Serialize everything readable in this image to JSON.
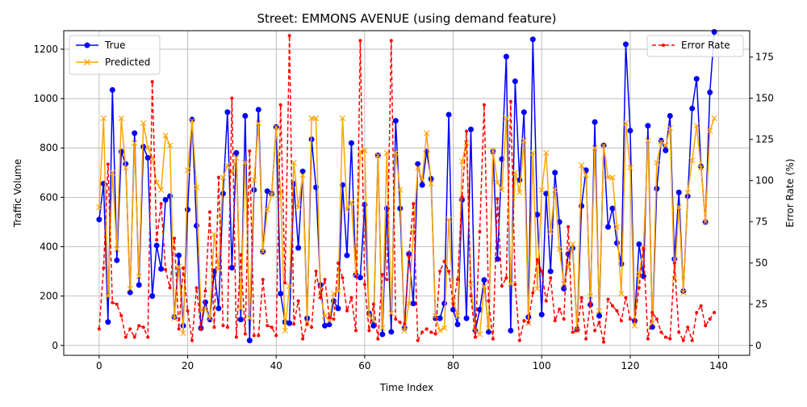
{
  "chart_data": {
    "type": "line",
    "title": "Street: EMMONS AVENUE (using demand feature)",
    "xlabel": "Time Index",
    "ylabel": "Traffic Volume",
    "y2label": "Error Rate (%)",
    "xlim": [
      -8,
      147
    ],
    "ylim": [
      -40,
      1275
    ],
    "y2lim": [
      -6,
      191
    ],
    "xticks": [
      0,
      20,
      40,
      60,
      80,
      100,
      120,
      140
    ],
    "yticks": [
      0,
      200,
      400,
      600,
      800,
      1000,
      1200
    ],
    "y2ticks": [
      0,
      25,
      50,
      75,
      100,
      125,
      150,
      175
    ],
    "grid": true,
    "legend_left_placement": "top-left",
    "legend_right_placement": "top-right",
    "series": [
      {
        "name": "True",
        "axis": "left",
        "color": "#0000ff",
        "marker": "circle",
        "values": [
          510,
          655,
          95,
          1035,
          345,
          785,
          735,
          215,
          860,
          245,
          805,
          760,
          200,
          405,
          310,
          590,
          605,
          115,
          365,
          80,
          550,
          915,
          485,
          70,
          175,
          105,
          300,
          150,
          615,
          945,
          315,
          780,
          105,
          930,
          20,
          630,
          955,
          380,
          625,
          615,
          885,
          210,
          95,
          90,
          655,
          395,
          705,
          110,
          835,
          640,
          245,
          80,
          85,
          180,
          150,
          650,
          365,
          820,
          285,
          275,
          570,
          130,
          80,
          770,
          45,
          555,
          55,
          910,
          555,
          70,
          370,
          170,
          735,
          650,
          785,
          675,
          110,
          110,
          170,
          935,
          145,
          85,
          590,
          110,
          875,
          60,
          145,
          265,
          55,
          785,
          350,
          755,
          1170,
          60,
          1070,
          670,
          945,
          115,
          1240,
          530,
          125,
          615,
          300,
          700,
          500,
          230,
          370,
          395,
          65,
          565,
          710,
          165,
          905,
          120,
          810,
          480,
          555,
          415,
          330,
          1220,
          870,
          100,
          410,
          280,
          890,
          75,
          635,
          830,
          790,
          930,
          350,
          620,
          220,
          605,
          960,
          1080,
          725,
          500,
          1025,
          1270
        ]
      },
      {
        "name": "Predicted",
        "axis": "left",
        "color": "#ffa500",
        "marker": "x",
        "values": [
          560,
          920,
          200,
          700,
          390,
          920,
          720,
          230,
          820,
          280,
          900,
          800,
          760,
          660,
          630,
          850,
          810,
          110,
          320,
          50,
          710,
          910,
          640,
          140,
          150,
          110,
          450,
          310,
          680,
          730,
          700,
          760,
          150,
          740,
          110,
          670,
          900,
          380,
          550,
          610,
          885,
          620,
          60,
          240,
          740,
          560,
          690,
          90,
          920,
          920,
          200,
          120,
          100,
          210,
          220,
          920,
          550,
          580,
          290,
          785,
          790,
          120,
          100,
          770,
          70,
          780,
          130,
          780,
          630,
          60,
          170,
          460,
          720,
          670,
          860,
          655,
          120,
          60,
          70,
          510,
          180,
          120,
          745,
          820,
          250,
          60,
          45,
          240,
          70,
          790,
          660,
          630,
          920,
          250,
          700,
          620,
          830,
          90,
          780,
          230,
          630,
          780,
          460,
          630,
          390,
          250,
          320,
          410,
          60,
          730,
          690,
          200,
          800,
          140,
          810,
          680,
          680,
          480,
          210,
          900,
          720,
          80,
          290,
          395,
          830,
          90,
          740,
          825,
          810,
          880,
          270,
          560,
          215,
          620,
          750,
          890,
          720,
          500,
          870,
          920
        ]
      },
      {
        "name": "Error Rate",
        "axis": "right",
        "color": "#ff0000",
        "marker": "dot",
        "values": [
          10,
          47,
          110,
          26,
          25,
          18,
          5,
          10,
          5,
          12,
          11,
          5,
          160,
          64,
          86,
          46,
          35,
          65,
          10,
          47,
          21,
          3,
          35,
          10,
          33,
          81,
          11,
          102,
          12,
          11,
          150,
          5,
          55,
          7,
          118,
          6,
          6,
          40,
          12,
          11,
          6,
          146,
          38,
          188,
          13,
          27,
          4,
          13,
          11,
          45,
          29,
          40,
          17,
          16,
          50,
          41,
          21,
          29,
          9,
          185,
          37,
          9,
          25,
          4,
          43,
          40,
          185,
          16,
          14,
          13,
          54,
          86,
          3,
          8,
          10,
          8,
          7,
          45,
          51,
          45,
          25,
          40,
          90,
          130,
          30,
          5,
          69,
          146,
          27,
          4,
          89,
          36,
          41,
          148,
          37,
          3,
          15,
          14,
          32,
          52,
          45,
          27,
          41,
          15,
          22,
          16,
          72,
          8,
          9,
          29,
          4,
          26,
          9,
          14,
          2,
          28,
          24,
          21,
          15,
          29,
          16,
          15,
          35,
          59,
          4,
          20,
          16,
          8,
          5,
          4,
          50,
          8,
          3,
          11,
          3,
          20,
          24,
          12,
          16,
          20
        ]
      }
    ]
  }
}
